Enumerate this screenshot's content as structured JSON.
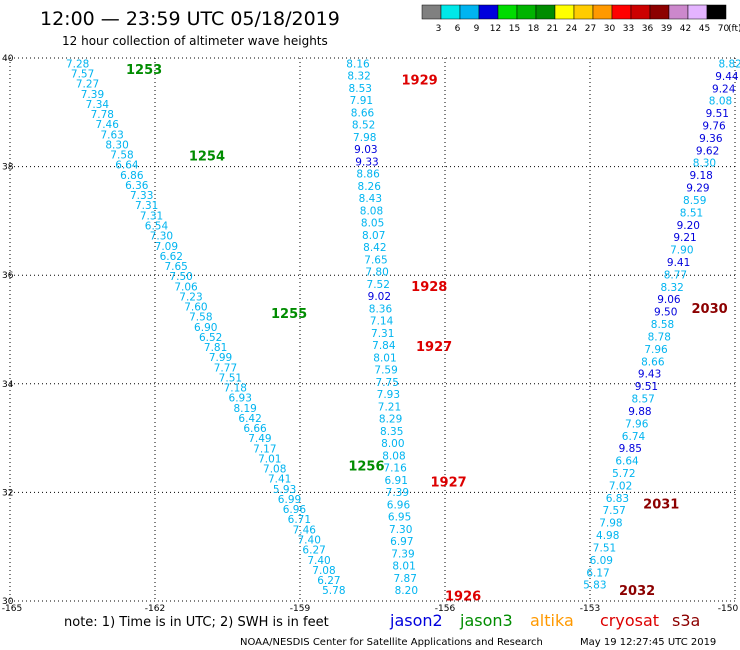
{
  "header": {
    "title": "12:00 — 23:59 UTC 05/18/2019",
    "subtitle": "12 hour collection of altimeter wave heights"
  },
  "legend": {
    "unit": "(ft)",
    "bins": [
      {
        "label": "3",
        "color": "#808080"
      },
      {
        "label": "6",
        "color": "#00e8e8"
      },
      {
        "label": "9",
        "color": "#00b4f0"
      },
      {
        "label": "12",
        "color": "#0000dd"
      },
      {
        "label": "15",
        "color": "#00dc00"
      },
      {
        "label": "18",
        "color": "#00b400"
      },
      {
        "label": "21",
        "color": "#008c00"
      },
      {
        "label": "24",
        "color": "#ffff00"
      },
      {
        "label": "27",
        "color": "#ffcc00"
      },
      {
        "label": "30",
        "color": "#ff9900"
      },
      {
        "label": "33",
        "color": "#ff0000"
      },
      {
        "label": "36",
        "color": "#cc0000"
      },
      {
        "label": "39",
        "color": "#8c0000"
      },
      {
        "label": "42",
        "color": "#cc88cc"
      },
      {
        "label": "45",
        "color": "#e4b4ff"
      },
      {
        "label": "70",
        "color": "#000000"
      }
    ]
  },
  "satellites": [
    {
      "name": "jason2",
      "color": "#0000dd"
    },
    {
      "name": "jason3",
      "color": "#008c00"
    },
    {
      "name": "altika",
      "color": "#ff9900"
    },
    {
      "name": "cryosat",
      "color": "#dd0000"
    },
    {
      "name": "s3a",
      "color": "#8c0000"
    }
  ],
  "note": "note:  1) Time is in UTC;  2) SWH is in feet",
  "footer": {
    "source": "NOAA/NESDIS Center for Satellite Applications and Research",
    "timestamp": "May 19 12:27:45 UTC 2019"
  },
  "chart_data": {
    "type": "scatter",
    "xlim": [
      -165,
      -150
    ],
    "ylim": [
      30,
      40
    ],
    "x_ticks": [
      "-165",
      "-162",
      "-159",
      "-156",
      "-153",
      "-150"
    ],
    "x_tick_values": [
      -165,
      -162,
      -159,
      -156,
      -153,
      -150
    ],
    "y_ticks": [
      "30",
      "32",
      "34",
      "36",
      "38",
      "40"
    ],
    "y_tick_values": [
      30,
      32,
      34,
      36,
      38,
      40
    ],
    "grid": true,
    "colors": {
      "low": "#00b4f0",
      "high": "#0000dd"
    },
    "tracks": [
      {
        "id": "jason3",
        "lon_start": -163.6,
        "lat_start": 39.9,
        "lon_end": -158.3,
        "lat_end": 30.2,
        "values": [
          "7.28",
          "7.57",
          "7.27",
          "7.39",
          "7.34",
          "7.78",
          "7.46",
          "7.63",
          "8.30",
          "7.58",
          "6.64",
          "6.86",
          "6.36",
          "7.33",
          "7.31",
          "7.31",
          "6.54",
          "7.30",
          "7.09",
          "6.62",
          "7.65",
          "7.50",
          "7.06",
          "7.23",
          "7.60",
          "7.58",
          "6.90",
          "6.52",
          "7.81",
          "7.99",
          "7.77",
          "7.51",
          "7.18",
          "6.93",
          "8.19",
          "6.42",
          "6.66",
          "7.49",
          "7.17",
          "7.01",
          "7.08",
          "7.41",
          "5.93",
          "6.99",
          "6.96",
          "6.71",
          "7.46",
          "7.40",
          "6.27",
          "7.40",
          "7.08",
          "6.27",
          "5.78"
        ]
      },
      {
        "id": "cryosat",
        "lon_start": -157.8,
        "lat_start": 39.9,
        "lon_end": -156.8,
        "lat_end": 30.2,
        "values": [
          "8.16",
          "8.32",
          "8.53",
          "7.91",
          "8.66",
          "8.52",
          "7.98",
          "9.03",
          "9.33",
          "8.86",
          "8.26",
          "8.43",
          "8.08",
          "8.05",
          "8.07",
          "8.42",
          "7.65",
          "7.80",
          "7.52",
          "9.02",
          "8.36",
          "7.14",
          "7.31",
          "7.84",
          "8.01",
          "7.59",
          "7.75",
          "7.93",
          "7.21",
          "8.29",
          "8.35",
          "8.00",
          "8.08",
          "7.16",
          "6.91",
          "7.39",
          "6.96",
          "6.95",
          "7.30",
          "6.97",
          "7.39",
          "8.01",
          "7.87",
          "8.20"
        ]
      },
      {
        "id": "s3a",
        "lon_start": -150.1,
        "lat_start": 39.9,
        "lon_end": -152.9,
        "lat_end": 30.3,
        "values": [
          "8.82",
          "9.44",
          "9.24",
          "8.08",
          "9.51",
          "9.76",
          "9.36",
          "9.62",
          "8.30",
          "9.18",
          "9.29",
          "8.59",
          "8.51",
          "9.20",
          "9.21",
          "7.90",
          "9.41",
          "8.77",
          "8.32",
          "9.06",
          "9.50",
          "8.58",
          "8.78",
          "7.96",
          "8.66",
          "9.43",
          "9.51",
          "8.57",
          "9.88",
          "7.96",
          "6.74",
          "9.85",
          "6.64",
          "5.72",
          "7.02",
          "6.83",
          "7.57",
          "7.98",
          "4.98",
          "7.51",
          "6.09",
          "6.17",
          "5.83"
        ]
      }
    ],
    "pass_labels": [
      {
        "text": "1253",
        "sat": "jason3",
        "lon": -162.6,
        "lat": 39.8
      },
      {
        "text": "1254",
        "sat": "jason3",
        "lon": -161.3,
        "lat": 38.2
      },
      {
        "text": "1255",
        "sat": "jason3",
        "lon": -159.6,
        "lat": 35.3
      },
      {
        "text": "1256",
        "sat": "jason3",
        "lon": -158.0,
        "lat": 32.5
      },
      {
        "text": "1929",
        "sat": "cryosat",
        "lon": -156.9,
        "lat": 39.6
      },
      {
        "text": "1928",
        "sat": "cryosat",
        "lon": -156.7,
        "lat": 35.8
      },
      {
        "text": "1927",
        "sat": "cryosat",
        "lon": -156.6,
        "lat": 34.7
      },
      {
        "text": "1927",
        "sat": "cryosat",
        "lon": -156.3,
        "lat": 32.2
      },
      {
        "text": "1926",
        "sat": "cryosat",
        "lon": -156.0,
        "lat": 30.1
      },
      {
        "text": "2030",
        "sat": "s3a",
        "lon": -150.9,
        "lat": 35.4
      },
      {
        "text": "2031",
        "sat": "s3a",
        "lon": -151.9,
        "lat": 31.8
      },
      {
        "text": "2032",
        "sat": "s3a",
        "lon": -152.4,
        "lat": 30.2
      }
    ]
  }
}
